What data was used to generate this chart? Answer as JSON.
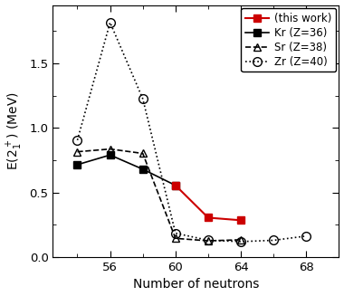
{
  "this_work": {
    "x": [
      60,
      62,
      64
    ],
    "y": [
      0.555,
      0.305,
      0.285
    ],
    "color": "#cc0000",
    "marker": "s",
    "linestyle": "-",
    "linewidth": 1.5,
    "markersize": 6,
    "label": "(this work)",
    "fillstyle": "full"
  },
  "Kr": {
    "x": [
      54,
      56,
      58,
      60
    ],
    "y": [
      0.715,
      0.79,
      0.68,
      0.555
    ],
    "color": "black",
    "marker": "s",
    "linestyle": "-",
    "linewidth": 1.2,
    "markersize": 6,
    "label": "Kr (Z=36)",
    "fillstyle": "full"
  },
  "Sr": {
    "x": [
      54,
      56,
      58,
      60,
      62,
      64
    ],
    "y": [
      0.815,
      0.836,
      0.802,
      0.145,
      0.126,
      0.134
    ],
    "color": "black",
    "marker": "^",
    "linestyle": "--",
    "linewidth": 1.2,
    "markersize": 6,
    "label": "Sr (Z=38)",
    "fillstyle": "none"
  },
  "Zr": {
    "x": [
      54,
      56,
      58,
      60,
      62,
      64,
      66,
      68
    ],
    "y": [
      0.905,
      1.815,
      1.225,
      0.185,
      0.13,
      0.12,
      0.13,
      0.163
    ],
    "color": "black",
    "marker": "o",
    "linestyle": ":",
    "linewidth": 1.2,
    "markersize": 7,
    "label": "Zr (Z=40)",
    "fillstyle": "none"
  },
  "xlim": [
    52.5,
    70
  ],
  "ylim": [
    0,
    1.95
  ],
  "xticks": [
    56,
    60,
    64,
    68
  ],
  "yticks": [
    0,
    0.5,
    1.0,
    1.5
  ],
  "xlabel": "Number of neutrons",
  "ylabel": "E(2$_1^+$) (MeV)",
  "legend_loc": "upper right",
  "legend_fontsize": 8.5
}
